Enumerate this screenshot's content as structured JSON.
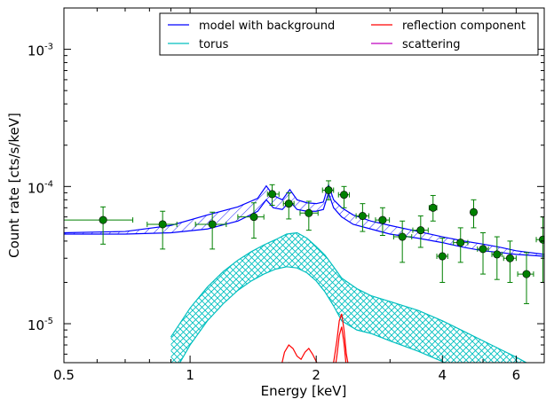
{
  "chart_data": {
    "type": "scatter",
    "title": "",
    "xlabel": "Energy [keV]",
    "ylabel": "Count rate [cts/s/keV]",
    "xscale": "log",
    "yscale": "log",
    "xlim": [
      0.5,
      7.0
    ],
    "ylim": [
      5.2e-06,
      0.002
    ],
    "grid": false,
    "legend_position": "top-right",
    "legend_columns": 2,
    "x_ticks": [
      0.5,
      1,
      2,
      4,
      6
    ],
    "x_tick_labels": [
      "0.5",
      "1",
      "2",
      "4",
      "6"
    ],
    "y_ticks": [
      1e-05,
      0.0001,
      0.001
    ],
    "y_tick_labels": [
      {
        "base": "10",
        "exp": "-5"
      },
      {
        "base": "10",
        "exp": "-4"
      },
      {
        "base": "10",
        "exp": "-3"
      }
    ],
    "legend": [
      {
        "name": "model with background",
        "color": "#0000ff"
      },
      {
        "name": "reflection component",
        "color": "#ff0000"
      },
      {
        "name": "torus",
        "color": "#00bfbf"
      },
      {
        "name": "scattering",
        "color": "#bf00bf"
      }
    ],
    "data_points": {
      "marker_color": "#008000",
      "points": [
        {
          "x": 0.62,
          "y": 5.7e-05,
          "xlo": 0.5,
          "xhi": 0.73,
          "ylo": 3.8e-05,
          "yhi": 7.1e-05
        },
        {
          "x": 0.86,
          "y": 5.3e-05,
          "xlo": 0.79,
          "xhi": 0.93,
          "ylo": 3.5e-05,
          "yhi": 6.6e-05
        },
        {
          "x": 1.13,
          "y": 5.3e-05,
          "xlo": 1.03,
          "xhi": 1.22,
          "ylo": 3.5e-05,
          "yhi": 6.5e-05
        },
        {
          "x": 1.42,
          "y": 6e-05,
          "xlo": 1.3,
          "xhi": 1.5,
          "ylo": 4.2e-05,
          "yhi": 7.6e-05
        },
        {
          "x": 1.57,
          "y": 8.8e-05,
          "xlo": 1.53,
          "xhi": 1.63,
          "ylo": 7.3e-05,
          "yhi": 0.000103
        },
        {
          "x": 1.72,
          "y": 7.5e-05,
          "xlo": 1.67,
          "xhi": 1.77,
          "ylo": 5.8e-05,
          "yhi": 9e-05
        },
        {
          "x": 1.92,
          "y": 6.4e-05,
          "xlo": 1.83,
          "xhi": 2.02,
          "ylo": 4.8e-05,
          "yhi": 7.8e-05
        },
        {
          "x": 2.14,
          "y": 9.4e-05,
          "xlo": 2.07,
          "xhi": 2.2,
          "ylo": 8e-05,
          "yhi": 0.00011
        },
        {
          "x": 2.33,
          "y": 8.7e-05,
          "xlo": 2.26,
          "xhi": 2.4,
          "ylo": 7e-05,
          "yhi": 0.0001
        },
        {
          "x": 2.58,
          "y": 6.1e-05,
          "xlo": 2.49,
          "xhi": 2.67,
          "ylo": 4.7e-05,
          "yhi": 7.5e-05
        },
        {
          "x": 2.88,
          "y": 5.7e-05,
          "xlo": 2.77,
          "xhi": 2.99,
          "ylo": 4.4e-05,
          "yhi": 7e-05
        },
        {
          "x": 3.21,
          "y": 4.3e-05,
          "xlo": 3.06,
          "xhi": 3.38,
          "ylo": 2.8e-05,
          "yhi": 5.6e-05
        },
        {
          "x": 3.55,
          "y": 4.8e-05,
          "xlo": 3.4,
          "xhi": 3.7,
          "ylo": 3.6e-05,
          "yhi": 6.1e-05
        },
        {
          "x": 3.8,
          "y": 7e-05,
          "xlo": 3.72,
          "xhi": 3.88,
          "ylo": 5.6e-05,
          "yhi": 8.6e-05
        },
        {
          "x": 4.0,
          "y": 3.1e-05,
          "xlo": 3.88,
          "xhi": 4.12,
          "ylo": 2e-05,
          "yhi": 4.2e-05
        },
        {
          "x": 4.42,
          "y": 3.9e-05,
          "xlo": 4.25,
          "xhi": 4.6,
          "ylo": 2.8e-05,
          "yhi": 5e-05
        },
        {
          "x": 4.75,
          "y": 6.5e-05,
          "xlo": 4.68,
          "xhi": 4.82,
          "ylo": 5e-05,
          "yhi": 8e-05
        },
        {
          "x": 5.0,
          "y": 3.5e-05,
          "xlo": 4.85,
          "xhi": 5.15,
          "ylo": 2.3e-05,
          "yhi": 4.6e-05
        },
        {
          "x": 5.4,
          "y": 3.2e-05,
          "xlo": 5.25,
          "xhi": 5.55,
          "ylo": 2.1e-05,
          "yhi": 4.3e-05
        },
        {
          "x": 5.8,
          "y": 3e-05,
          "xlo": 5.6,
          "xhi": 6.0,
          "ylo": 2e-05,
          "yhi": 4e-05
        },
        {
          "x": 6.35,
          "y": 2.3e-05,
          "xlo": 6.05,
          "xhi": 6.6,
          "ylo": 1.4e-05,
          "yhi": 3.3e-05
        },
        {
          "x": 6.95,
          "y": 4.1e-05,
          "xlo": 6.7,
          "xhi": 7.0,
          "ylo": 2e-05,
          "yhi": 6e-05
        }
      ]
    },
    "model_band": {
      "color": "#0000ff",
      "x": [
        0.5,
        0.7,
        0.9,
        1.1,
        1.3,
        1.45,
        1.52,
        1.58,
        1.66,
        1.73,
        1.8,
        1.9,
        2.0,
        2.08,
        2.14,
        2.2,
        2.3,
        2.45,
        2.7,
        3.0,
        3.5,
        4.0,
        4.5,
        5.0,
        5.5,
        6.0,
        7.0
      ],
      "lower": [
        4.5e-05,
        4.5e-05,
        4.6e-05,
        4.9e-05,
        5.6e-05,
        6.6e-05,
        8e-05,
        7e-05,
        6.8e-05,
        7.8e-05,
        6.8e-05,
        6.6e-05,
        6.6e-05,
        6.8e-05,
        9e-05,
        7e-05,
        6e-05,
        5.3e-05,
        4.9e-05,
        4.5e-05,
        4.2e-05,
        3.9e-05,
        3.6e-05,
        3.4e-05,
        3.3e-05,
        3.2e-05,
        3.1e-05
      ],
      "upper": [
        4.6e-05,
        4.7e-05,
        5.2e-05,
        6.2e-05,
        7.1e-05,
        8.2e-05,
        0.000101,
        8.6e-05,
        8e-05,
        9.5e-05,
        8e-05,
        7.6e-05,
        7.5e-05,
        7.7e-05,
        0.000103,
        8e-05,
        7e-05,
        6.2e-05,
        5.6e-05,
        5.2e-05,
        4.7e-05,
        4.3e-05,
        4e-05,
        3.8e-05,
        3.6e-05,
        3.4e-05,
        3.2e-05
      ]
    },
    "torus_band": {
      "color": "#00bfbf",
      "x": [
        0.9,
        1.0,
        1.1,
        1.2,
        1.3,
        1.4,
        1.5,
        1.6,
        1.7,
        1.8,
        1.9,
        2.0,
        2.1,
        2.2,
        2.3,
        2.5,
        2.7,
        3.0,
        3.5,
        4.0,
        4.5,
        5.0,
        5.5,
        6.0,
        6.5,
        7.0
      ],
      "lower": [
        4e-06,
        7e-06,
        1.05e-05,
        1.4e-05,
        1.75e-05,
        2.05e-05,
        2.3e-05,
        2.5e-05,
        2.6e-05,
        2.55e-05,
        2.35e-05,
        2.05e-05,
        1.7e-05,
        1.35e-05,
        1.05e-05,
        9e-06,
        8.5e-06,
        7.5e-06,
        6.3e-06,
        5.3e-06,
        4.5e-06,
        3.9e-06,
        3.4e-06,
        3e-06,
        2.7e-06,
        2.4e-06
      ],
      "upper": [
        8e-06,
        1.3e-05,
        1.85e-05,
        2.4e-05,
        2.9e-05,
        3.35e-05,
        3.75e-05,
        4.1e-05,
        4.5e-05,
        4.6e-05,
        4.2e-05,
        3.65e-05,
        3.15e-05,
        2.6e-05,
        2.15e-05,
        1.8e-05,
        1.6e-05,
        1.45e-05,
        1.25e-05,
        1.05e-05,
        8.8e-06,
        7.5e-06,
        6.5e-06,
        5.7e-06,
        5e-06,
        4.4e-06
      ]
    },
    "reflection_curves": {
      "color": "#ff0000",
      "x": [
        1.64,
        1.68,
        1.72,
        1.76,
        1.8,
        1.84,
        1.88,
        1.92,
        1.96,
        2.0,
        2.04,
        2.08,
        2.12,
        2.16,
        2.2,
        2.24,
        2.27,
        2.3,
        2.33,
        2.36,
        2.4,
        2.45
      ],
      "curve_a": [
        4.5e-06,
        6.2e-06,
        7e-06,
        6.6e-06,
        5.8e-06,
        5.5e-06,
        6.2e-06,
        6.6e-06,
        6e-06,
        5.3e-06,
        4.8e-06,
        4.5e-06,
        4.4e-06,
        4.6e-06,
        5.2e-06,
        7.5e-06,
        1.05e-05,
        1.18e-05,
        9e-06,
        6e-06,
        4.5e-06,
        4e-06
      ],
      "curve_b": [
        3.5e-06,
        4.6e-06,
        5.2e-06,
        4.9e-06,
        4.3e-06,
        4.1e-06,
        4.6e-06,
        5e-06,
        4.5e-06,
        4e-06,
        3.6e-06,
        3.4e-06,
        3.3e-06,
        3.5e-06,
        4e-06,
        5.8e-06,
        8.2e-06,
        9.5e-06,
        7.2e-06,
        4.8e-06,
        3.6e-06,
        3.1e-06
      ]
    }
  }
}
